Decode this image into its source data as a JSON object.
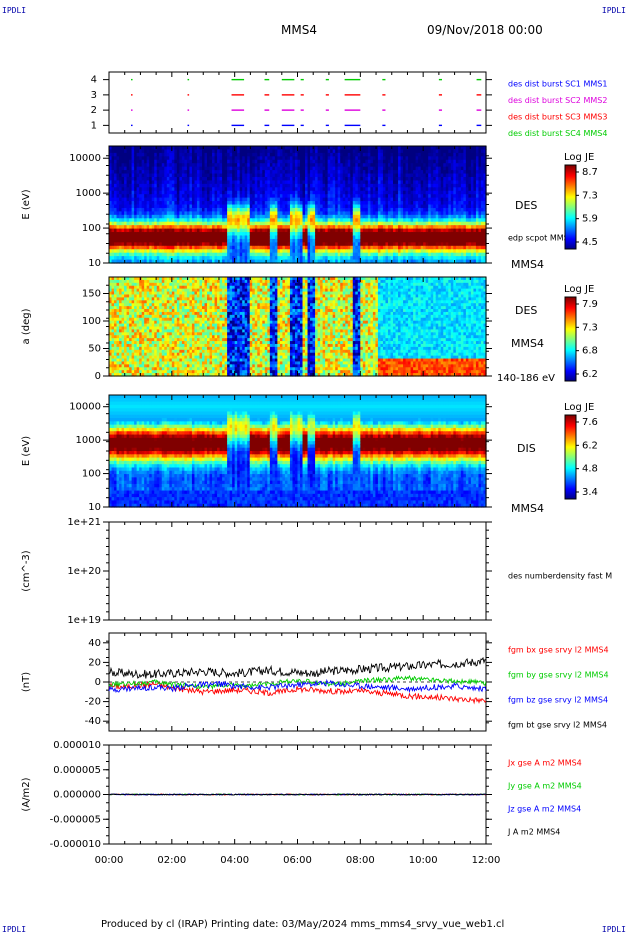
{
  "header": {
    "corner_tl": "IPDLI",
    "corner_tr": "IPDLI",
    "corner_bl": "IPDLI",
    "corner_br": "IPDLI",
    "title": "MMS4",
    "datetime": "09/Nov/2018 00:00"
  },
  "footer": {
    "text": "Produced by cl (IRAP)   Printing date: 03/May/2024   mms_mms4_srvy_vue_web1.cl"
  },
  "colors": {
    "red": "#ff0000",
    "green": "#00cc00",
    "blue": "#0000ff",
    "magenta": "#dd00dd",
    "black": "#000000"
  },
  "x_axis": {
    "ticks": [
      "00:00",
      "02:00",
      "04:00",
      "06:00",
      "08:00",
      "10:00",
      "12:00"
    ],
    "range_hours": [
      0,
      12
    ]
  },
  "chart_data": [
    {
      "type": "scatter",
      "panel": "burst",
      "yticks": [
        "1",
        "2",
        "3",
        "4"
      ],
      "ylim": [
        0.5,
        4.5
      ],
      "series": [
        {
          "name": "des dist burst SC1 MMS1",
          "color": "#0000ff",
          "y": 1,
          "intervals": [
            [
              0.7,
              0.75
            ],
            [
              2.5,
              2.55
            ],
            [
              3.9,
              4.3
            ],
            [
              4.95,
              5.1
            ],
            [
              5.5,
              5.9
            ],
            [
              6.1,
              6.2
            ],
            [
              6.9,
              7.0
            ],
            [
              7.5,
              8.0
            ],
            [
              8.7,
              8.8
            ],
            [
              10.5,
              10.6
            ],
            [
              11.7,
              11.85
            ]
          ]
        },
        {
          "name": "des dist burst SC2 MMS2",
          "color": "#dd00dd",
          "y": 2,
          "intervals": [
            [
              0.7,
              0.75
            ],
            [
              2.5,
              2.55
            ],
            [
              3.9,
              4.3
            ],
            [
              4.95,
              5.1
            ],
            [
              5.5,
              5.9
            ],
            [
              6.1,
              6.2
            ],
            [
              6.9,
              7.0
            ],
            [
              7.5,
              8.0
            ],
            [
              8.7,
              8.8
            ],
            [
              10.5,
              10.6
            ],
            [
              11.7,
              11.85
            ]
          ]
        },
        {
          "name": "des dist burst SC3 MMS3",
          "color": "#ff0000",
          "y": 3,
          "intervals": [
            [
              0.7,
              0.75
            ],
            [
              2.5,
              2.55
            ],
            [
              3.9,
              4.3
            ],
            [
              4.95,
              5.1
            ],
            [
              5.5,
              5.9
            ],
            [
              6.1,
              6.2
            ],
            [
              6.9,
              7.0
            ],
            [
              7.5,
              8.0
            ],
            [
              8.7,
              8.8
            ],
            [
              10.5,
              10.6
            ],
            [
              11.7,
              11.85
            ]
          ]
        },
        {
          "name": "des dist burst SC4 MMS4",
          "color": "#00cc00",
          "y": 4,
          "intervals": [
            [
              0.7,
              0.75
            ],
            [
              2.5,
              2.55
            ],
            [
              3.9,
              4.3
            ],
            [
              4.95,
              5.1
            ],
            [
              5.5,
              5.9
            ],
            [
              6.1,
              6.2
            ],
            [
              6.9,
              7.0
            ],
            [
              7.5,
              8.0
            ],
            [
              8.7,
              8.8
            ],
            [
              10.5,
              10.6
            ],
            [
              11.7,
              11.85
            ]
          ]
        }
      ]
    },
    {
      "type": "heatmap",
      "panel": "des_energy",
      "ylabel": "E (eV)",
      "yticks": [
        "10",
        "100",
        "1000",
        "10000"
      ],
      "ylim_log10": [
        1,
        4.3
      ],
      "right_label": "DES",
      "overlay_label": "edp scpot MMS4",
      "sc_label": "MMS4",
      "colorbar": {
        "title": "Log JE",
        "max": "8.7",
        "t1": "7.3",
        "t2": "5.9",
        "min": "4.5"
      },
      "peak_log10_energy": 1.75
    },
    {
      "type": "heatmap",
      "panel": "des_pitch",
      "ylabel": "a (deg)",
      "yticks": [
        "0",
        "50",
        "100",
        "150"
      ],
      "ylim": [
        0,
        180
      ],
      "right_label": "DES",
      "sc_label": "MMS4",
      "energy_label": "140-186 eV",
      "colorbar": {
        "title": "Log JE",
        "max": "7.9",
        "t1": "7.3",
        "t2": "6.8",
        "min": "6.2"
      }
    },
    {
      "type": "heatmap",
      "panel": "dis_energy",
      "ylabel": "E (eV)",
      "yticks": [
        "10",
        "100",
        "1000",
        "10000"
      ],
      "ylim_log10": [
        1,
        4.3
      ],
      "right_label": "DIS",
      "sc_label": "MMS4",
      "colorbar": {
        "title": "Log JE",
        "max": "7.6",
        "t1": "6.2",
        "t2": "4.8",
        "min": "3.4"
      },
      "peak_log10_energy": 2.95
    },
    {
      "type": "line",
      "panel": "density",
      "ylabel": "(cm^-3)",
      "yticks": [
        "1e+19",
        "1e+20",
        "1e+21"
      ],
      "ylim_log10": [
        19,
        21
      ],
      "series": [
        {
          "name": "des numberdensity fast M",
          "color": "#000000",
          "values": []
        }
      ]
    },
    {
      "type": "line",
      "panel": "bfield",
      "ylabel": "(nT)",
      "yticks": [
        "-40",
        "-20",
        "0",
        "20",
        "40"
      ],
      "ylim": [
        -50,
        50
      ],
      "series": [
        {
          "name": "fgm bx gse srvy l2 MMS4",
          "color": "#ff0000",
          "values": [
            -4,
            -5,
            -3,
            -2,
            -6,
            -8,
            -10,
            -9,
            -8,
            -9,
            -11,
            -10,
            -7,
            -8,
            -9,
            -10,
            -9,
            -11,
            -12,
            -14,
            -15,
            -16,
            -17,
            -18,
            -19
          ]
        },
        {
          "name": "fgm by gse srvy l2 MMS4",
          "color": "#00cc00",
          "values": [
            -3,
            -2,
            -1,
            0,
            -2,
            -3,
            -5,
            -4,
            -3,
            -4,
            -2,
            0,
            1,
            0,
            -2,
            -1,
            1,
            2,
            3,
            4,
            3,
            2,
            1,
            0,
            -1
          ]
        },
        {
          "name": "fgm bz gse srvy l2 MMS4",
          "color": "#0000ff",
          "values": [
            -8,
            -7,
            -6,
            -5,
            -7,
            -4,
            -3,
            -2,
            -4,
            -5,
            -6,
            -4,
            -3,
            -2,
            -1,
            -3,
            -4,
            -5,
            -6,
            -7,
            -6,
            -5,
            -4,
            -6,
            -7
          ]
        },
        {
          "name": "fgm bt gse srvy l2 MMS4",
          "color": "#000000",
          "values": [
            10,
            9,
            8,
            8,
            9,
            10,
            11,
            10,
            9,
            10,
            12,
            11,
            10,
            9,
            11,
            12,
            13,
            14,
            15,
            16,
            17,
            18,
            19,
            20,
            22
          ]
        }
      ]
    },
    {
      "type": "line",
      "panel": "current",
      "ylabel": "(A/m2)",
      "yticks": [
        "-0.000010",
        "-0.000005",
        "0.000000",
        "0.000005",
        "0.000010"
      ],
      "ylim": [
        -1e-05,
        1e-05
      ],
      "series": [
        {
          "name": "Jx gse A m2 MMS4",
          "color": "#ff0000",
          "values": [
            0,
            0,
            0,
            0,
            0,
            0,
            0,
            0,
            0,
            0,
            0,
            0,
            0
          ]
        },
        {
          "name": "Jy gse A m2 MMS4",
          "color": "#00cc00",
          "values": [
            0,
            0,
            0,
            0,
            0,
            0,
            0,
            0,
            0,
            0,
            0,
            0,
            0
          ]
        },
        {
          "name": "Jz gse A m2 MMS4",
          "color": "#0000ff",
          "values": [
            0,
            0,
            0,
            0,
            0,
            0,
            0,
            0,
            0,
            0,
            0,
            0,
            0
          ]
        },
        {
          "name": "J A m2 MMS4",
          "color": "#000000",
          "values": [
            0,
            0,
            0,
            0,
            0,
            0,
            0,
            0,
            0,
            0,
            0,
            0,
            0
          ]
        }
      ]
    }
  ]
}
